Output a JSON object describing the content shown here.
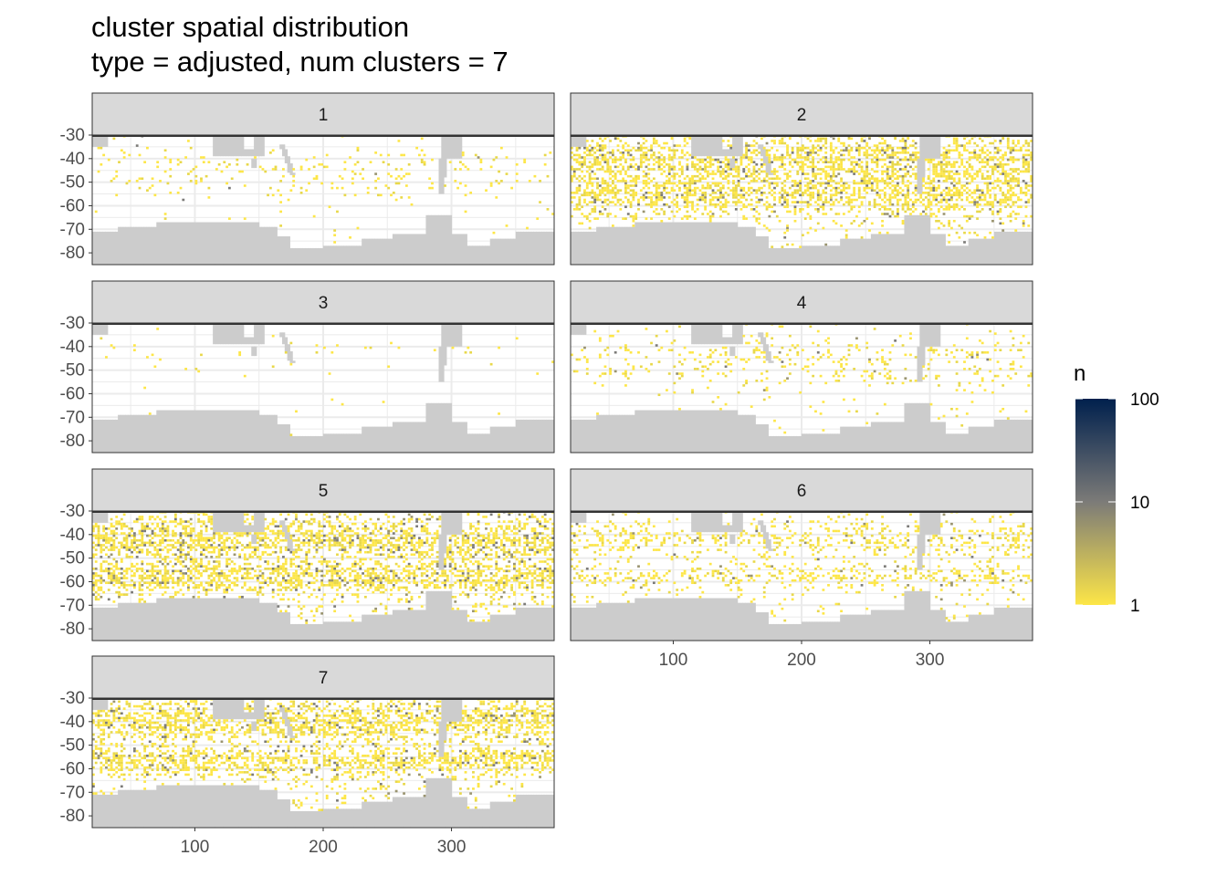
{
  "chart_data": {
    "type": "heatmap",
    "title": "cluster spatial distribution",
    "subtitle": "type = adjusted, num clusters = 7",
    "xlabel": "",
    "ylabel": "",
    "xlim": [
      20,
      380
    ],
    "ylim": [
      -85,
      -30
    ],
    "x_ticks": [
      100,
      200,
      300
    ],
    "y_ticks": [
      -30,
      -40,
      -50,
      -60,
      -70,
      -80
    ],
    "x_tick_labels": [
      "100",
      "200",
      "300"
    ],
    "y_tick_labels": [
      "-30",
      "-40",
      "-50",
      "-60",
      "-70",
      "-80"
    ],
    "facet_variable": "cluster",
    "facets": [
      {
        "label": "1",
        "density": 0.07,
        "dark_fraction": 0.02,
        "bands": [
          [
            -50,
            4
          ],
          [
            -45,
            8
          ]
        ]
      },
      {
        "label": "2",
        "density": 0.55,
        "dark_fraction": 0.12,
        "bands": [
          [
            -55,
            7
          ],
          [
            -40,
            8
          ]
        ]
      },
      {
        "label": "3",
        "density": 0.02,
        "dark_fraction": 0.0,
        "bands": [
          [
            -42,
            6
          ]
        ]
      },
      {
        "label": "4",
        "density": 0.12,
        "dark_fraction": 0.04,
        "bands": [
          [
            -52,
            4
          ],
          [
            -42,
            6
          ]
        ]
      },
      {
        "label": "5",
        "density": 0.6,
        "dark_fraction": 0.15,
        "bands": [
          [
            -58,
            6
          ],
          [
            -42,
            8
          ]
        ]
      },
      {
        "label": "6",
        "density": 0.28,
        "dark_fraction": 0.05,
        "bands": [
          [
            -58,
            4
          ],
          [
            -42,
            6
          ]
        ]
      },
      {
        "label": "7",
        "density": 0.6,
        "dark_fraction": 0.1,
        "bands": [
          [
            -57,
            5
          ],
          [
            -40,
            7
          ]
        ]
      }
    ],
    "fill_scale": {
      "name": "n",
      "transform": "log10",
      "breaks": [
        1,
        10,
        100
      ],
      "break_labels": [
        "1",
        "10",
        "100"
      ],
      "low_color": "#fde647",
      "mid_color": "#7c7b78",
      "high_color": "#00204d"
    },
    "land_color": "#cccccc",
    "grid": true,
    "legend_position": "right"
  }
}
